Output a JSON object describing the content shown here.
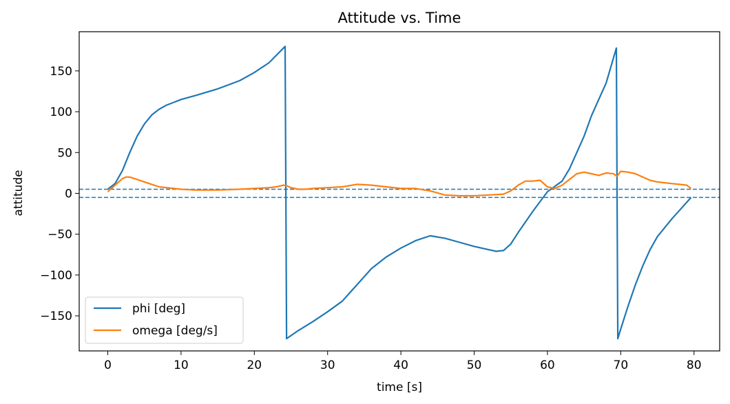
{
  "chart_data": {
    "type": "line",
    "title": "Attitude vs. Time",
    "xlabel": "time [s]",
    "ylabel": "attitude",
    "xlim": [
      -3.9,
      83.5
    ],
    "ylim": [
      -193,
      198
    ],
    "xticks": [
      0,
      10,
      20,
      30,
      40,
      50,
      60,
      70,
      80
    ],
    "yticks": [
      -150,
      -100,
      -50,
      0,
      50,
      100,
      150
    ],
    "ytick_labels": [
      "−150",
      "−100",
      "−50",
      "0",
      "50",
      "100",
      "150"
    ],
    "legend_position": "lower-left",
    "hlines": [
      {
        "y": 5,
        "style": "dashed",
        "color": "#1f77b4"
      },
      {
        "y": -5,
        "style": "dashed",
        "color": "#1f77b4"
      }
    ],
    "series": [
      {
        "name": "phi [deg]",
        "color": "#1f77b4",
        "x": [
          0,
          1,
          2,
          3,
          4,
          5,
          6,
          7,
          8,
          10,
          12,
          15,
          18,
          20,
          22,
          24.2,
          24.3,
          24.4,
          26,
          28,
          30,
          32,
          34,
          36,
          38,
          40,
          42,
          44,
          46,
          48,
          50,
          52,
          53,
          54,
          55,
          56,
          58,
          60,
          62,
          63,
          64,
          65,
          66,
          67,
          68,
          69.4,
          69.5,
          69.6,
          70,
          71,
          72,
          73,
          74,
          75,
          76,
          77,
          78,
          79,
          79.6
        ],
        "y": [
          5,
          12,
          28,
          50,
          70,
          85,
          96,
          103,
          108,
          115,
          120,
          128,
          138,
          148,
          160,
          180,
          0,
          -178,
          -168,
          -157,
          -145,
          -132,
          -112,
          -92,
          -78,
          -67,
          -58,
          -52,
          -55,
          -60,
          -65,
          -69,
          -71,
          -70,
          -62,
          -48,
          -22,
          2,
          15,
          30,
          50,
          70,
          95,
          115,
          135,
          178,
          0,
          -178,
          -166,
          -138,
          -112,
          -89,
          -69,
          -53,
          -42,
          -31,
          -21,
          -11,
          -5
        ]
      },
      {
        "name": "omega [deg/s]",
        "color": "#ff7f0e",
        "x": [
          0,
          1,
          2,
          2.5,
          3,
          4,
          5,
          6,
          7,
          8,
          10,
          12,
          15,
          18,
          20,
          22,
          23,
          24,
          24.5,
          25,
          26,
          27,
          28,
          30,
          32,
          34,
          36,
          38,
          40,
          42,
          44,
          46,
          48,
          50,
          52,
          54,
          55,
          56,
          57,
          58,
          59,
          60,
          61,
          62,
          63,
          64,
          65,
          66,
          67,
          68,
          69,
          69.5,
          70,
          71,
          72,
          73,
          74,
          75,
          76,
          77,
          78,
          79,
          79.6
        ],
        "y": [
          2,
          10,
          18,
          20,
          20,
          17,
          14,
          11,
          8,
          7,
          5,
          4,
          4,
          5,
          6,
          7,
          8,
          10,
          9,
          7,
          5,
          5,
          6,
          7,
          8,
          11,
          10,
          8,
          6,
          6,
          3,
          -2,
          -3,
          -3,
          -2,
          -1,
          3,
          10,
          15,
          15,
          16,
          8,
          6,
          10,
          17,
          24,
          26,
          24,
          22,
          25,
          24,
          21,
          27,
          26,
          24,
          20,
          16,
          14,
          13,
          12,
          11,
          10,
          6
        ]
      }
    ]
  }
}
